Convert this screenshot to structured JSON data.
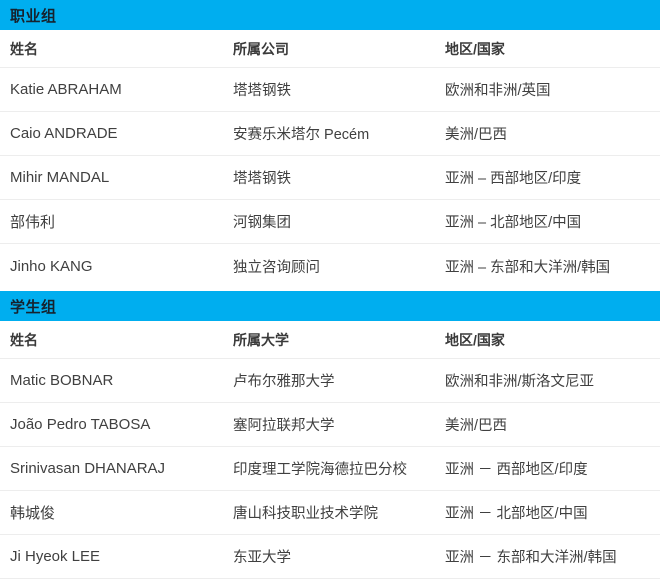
{
  "accent_color": "#00AEEF",
  "sections": [
    {
      "title": "职业组",
      "columns": [
        "姓名",
        "所属公司",
        "地区/国家"
      ],
      "rows": [
        {
          "name": "Katie ABRAHAM",
          "org": "塔塔钢铁",
          "region": "欧洲和非洲/英国"
        },
        {
          "name": "Caio ANDRADE",
          "org": "安赛乐米塔尔 Pecém",
          "region": "美洲/巴西"
        },
        {
          "name": "Mihir MANDAL",
          "org": "塔塔钢铁",
          "region": "亚洲 – 西部地区/印度"
        },
        {
          "name": "部伟利",
          "org": "河钢集团",
          "region": "亚洲 – 北部地区/中国"
        },
        {
          "name": "Jinho KANG",
          "org": "独立咨询顾问",
          "region": "亚洲 – 东部和大洋洲/韩国"
        }
      ]
    },
    {
      "title": "学生组",
      "columns": [
        "姓名",
        "所属大学",
        "地区/国家"
      ],
      "rows": [
        {
          "name": "Matic BOBNAR",
          "org": "卢布尔雅那大学",
          "region": "欧洲和非洲/斯洛文尼亚"
        },
        {
          "name": "João Pedro TABOSA",
          "org": "塞阿拉联邦大学",
          "region": "美洲/巴西"
        },
        {
          "name": "Srinivasan DHANARAJ",
          "org": "印度理工学院海德拉巴分校",
          "region": "亚洲 － 西部地区/印度"
        },
        {
          "name": "韩城俊",
          "org": "唐山科技职业技术学院",
          "region": "亚洲 － 北部地区/中国"
        },
        {
          "name": "Ji Hyeok LEE",
          "org": "东亚大学",
          "region": "亚洲 － 东部和大洋洲/韩国"
        }
      ]
    }
  ]
}
